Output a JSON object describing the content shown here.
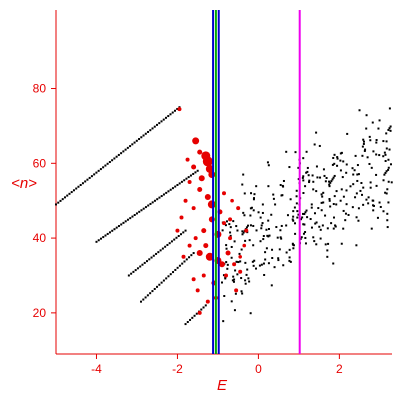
{
  "chart_data": {
    "type": "scatter",
    "xlabel": "E",
    "ylabel": "<n>",
    "xlim": [
      -5,
      3.3
    ],
    "ylim": [
      9,
      101
    ],
    "x_ticks": [
      {
        "value": -4,
        "label": "-4"
      },
      {
        "value": -2,
        "label": "-2"
      },
      {
        "value": 0,
        "label": "0"
      },
      {
        "value": 2,
        "label": "2"
      }
    ],
    "y_ticks": [
      {
        "value": 20,
        "label": "20"
      },
      {
        "value": 40,
        "label": "40"
      },
      {
        "value": 60,
        "label": "60"
      },
      {
        "value": 80,
        "label": "80"
      }
    ],
    "grid": false,
    "colors": {
      "axis": "#e60000",
      "black_points": "#000000",
      "red_points": "#e60000",
      "line_dark_blue": "#0000cc",
      "line_green": "#00aa00",
      "line_magenta": "#ee00ee"
    },
    "vertical_lines": [
      {
        "x": -1.12,
        "color": "#0000cc"
      },
      {
        "x": -1.05,
        "color": "#00aa00"
      },
      {
        "x": -0.98,
        "color": "#0000cc"
      },
      {
        "x": 1.02,
        "color": "#ee00ee"
      }
    ],
    "diagonal_sequences": [
      {
        "x_start": -5.0,
        "x_end": -1.95,
        "y_start": 49,
        "y_end": 75
      },
      {
        "x_start": -4.0,
        "x_end": -1.5,
        "y_start": 39,
        "y_end": 58
      },
      {
        "x_start": -3.2,
        "x_end": -1.8,
        "y_start": 30,
        "y_end": 42
      },
      {
        "x_start": -2.9,
        "x_end": -1.6,
        "y_start": 23,
        "y_end": 36
      },
      {
        "x_start": -1.8,
        "x_end": -1.3,
        "y_start": 17,
        "y_end": 22
      }
    ],
    "red_markers": [
      [
        -1.95,
        74.5,
        2.0
      ],
      [
        -1.55,
        66,
        3.5
      ],
      [
        -1.45,
        63,
        2.5
      ],
      [
        -1.3,
        62,
        4.5
      ],
      [
        -1.25,
        60.5,
        5.0
      ],
      [
        -1.2,
        58.5,
        4.0
      ],
      [
        -1.15,
        57,
        3.5
      ],
      [
        -1.75,
        61,
        2.0
      ],
      [
        -1.6,
        59,
        2.5
      ],
      [
        -1.4,
        56,
        3.0
      ],
      [
        -1.7,
        55,
        2.0
      ],
      [
        -1.45,
        53,
        2.5
      ],
      [
        -1.25,
        51,
        3.0
      ],
      [
        -1.15,
        49,
        4.0
      ],
      [
        -1.6,
        48,
        2.0
      ],
      [
        -1.9,
        45.5,
        2.0
      ],
      [
        -1.35,
        42,
        2.5
      ],
      [
        -1.0,
        41,
        3.5
      ],
      [
        -1.55,
        40,
        2.0
      ],
      [
        -1.7,
        38,
        2.0
      ],
      [
        -1.45,
        36,
        3.0
      ],
      [
        -1.2,
        35,
        4.0
      ],
      [
        -1.0,
        34,
        3.5
      ],
      [
        -0.9,
        33,
        3.0
      ],
      [
        -1.35,
        30,
        2.0
      ],
      [
        -1.6,
        29,
        2.0
      ],
      [
        -1.1,
        28,
        2.5
      ],
      [
        -1.5,
        26,
        2.0
      ],
      [
        -1.25,
        23,
        2.0
      ],
      [
        -1.45,
        20,
        2.0
      ],
      [
        -0.95,
        47,
        2.5
      ],
      [
        -0.85,
        44,
        2.0
      ],
      [
        -0.7,
        40,
        2.0
      ],
      [
        -0.75,
        36,
        2.5
      ],
      [
        -0.6,
        33,
        2.0
      ],
      [
        -0.45,
        31,
        2.0
      ],
      [
        -0.5,
        48,
        2.0
      ],
      [
        -0.3,
        42,
        2.0
      ],
      [
        -0.35,
        38,
        1.8
      ],
      [
        -0.85,
        52,
        2.0
      ],
      [
        -0.55,
        26,
        2.0
      ],
      [
        -1.05,
        24,
        2.0
      ],
      [
        -0.8,
        30,
        2.0
      ],
      [
        -1.15,
        45,
        3.0
      ],
      [
        -0.7,
        45,
        2.0
      ],
      [
        -1.3,
        38,
        2.5
      ],
      [
        -1.8,
        50,
        2.0
      ],
      [
        -2.0,
        42,
        2.0
      ],
      [
        -1.85,
        35,
        2.0
      ],
      [
        -0.45,
        35,
        1.8
      ],
      [
        -0.65,
        50,
        1.8
      ]
    ],
    "black_scatter": {
      "count": 380,
      "x_min": -0.9,
      "x_max": 3.3,
      "y_center_at_x0": 42,
      "slope": 6.0,
      "spread": 11,
      "seed": 7
    }
  }
}
